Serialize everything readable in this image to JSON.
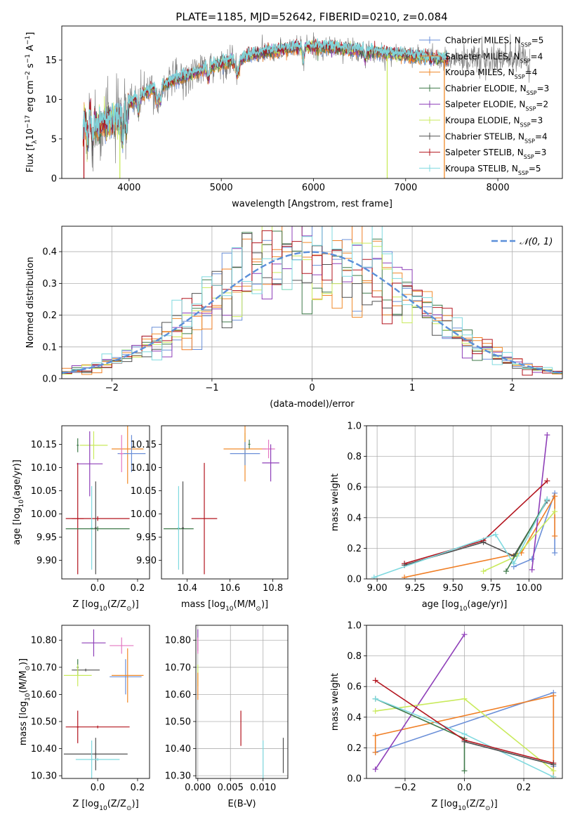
{
  "figure": {
    "title": "PLATE=1185, MJD=52642, FIBERID=0210, z=0.084"
  },
  "colors": {
    "Chabrier MILES": "#6a8fd8",
    "Salpeter MILES": "#f07f26",
    "Kroupa MILES": "#f08a2a",
    "Chabrier ELODIE": "#3f7a4a",
    "Salpeter ELODIE": "#8e3fb8",
    "Kroupa ELODIE": "#c9ea5c",
    "Chabrier STELIB": "#505050",
    "Salpeter STELIB": "#b3141e",
    "Kroupa STELIB": "#7fd9df",
    "data": "#808080",
    "extra_pink": "#e377c2"
  },
  "legend_labels": {
    "Chabrier MILES": "Chabrier MILES, N",
    "Salpeter MILES": "Salpeter MILES, N",
    "Kroupa MILES": "Kroupa MILES, N",
    "Chabrier ELODIE": "Chabrier ELODIE, N",
    "Salpeter ELODIE": "Salpeter ELODIE, N",
    "Kroupa ELODIE": "Kroupa ELODIE, N",
    "Chabrier STELIB": "Chabrier STELIB, N",
    "Salpeter STELIB": "Salpeter STELIB, N",
    "Kroupa STELIB": "Kroupa STELIB, N"
  },
  "legend_sub": "SSP",
  "legend_counts": {
    "Chabrier MILES": "=5",
    "Salpeter MILES": "=4",
    "Kroupa MILES": "=4",
    "Chabrier ELODIE": "=3",
    "Salpeter ELODIE": "=2",
    "Kroupa ELODIE": "=3",
    "Chabrier STELIB": "=4",
    "Salpeter STELIB": "=3",
    "Kroupa STELIB": "=5"
  },
  "chart_data": [
    {
      "id": "spectrum",
      "type": "line",
      "xlabel": "wavelength [Angstrom, rest frame]",
      "ylabel_parts": [
        "Flux [f",
        "λ",
        "10",
        "−17",
        " erg cm",
        "−2",
        " s",
        "−1",
        " A",
        "−1",
        "]"
      ],
      "xlim": [
        3270,
        8700
      ],
      "ylim": [
        0,
        19.3
      ],
      "xticks": [
        4000,
        5000,
        6000,
        7000,
        8000
      ],
      "yticks": [
        0,
        5,
        10,
        15
      ],
      "grid": false,
      "legend_position": "upper right",
      "continuum": {
        "x": [
          3500,
          3700,
          3900,
          4000,
          4200,
          4500,
          4800,
          5000,
          5200,
          5400,
          5600,
          5800,
          6000,
          6200,
          6400,
          6600,
          6800,
          7000,
          7200,
          7400
        ],
        "y": [
          6.0,
          7.0,
          7.5,
          9.5,
          11.0,
          12.5,
          13.8,
          14.5,
          15.2,
          15.8,
          16.2,
          16.6,
          16.7,
          16.5,
          16.3,
          16.1,
          15.9,
          15.6,
          15.4,
          15.1
        ]
      },
      "spikes": [
        {
          "x": 6800,
          "y_low": 0,
          "y_high": 15.5,
          "color": "#c9ea5c"
        },
        {
          "x": 7420,
          "y_low": 0,
          "y_high": 15.0,
          "color": "#f08a2a"
        },
        {
          "x": 3510,
          "y_low": 0,
          "y_high": 6.5,
          "color": "#b3141e"
        },
        {
          "x": 3900,
          "y_low": 0,
          "y_high": 6.0,
          "color": "#c9ea5c"
        }
      ]
    },
    {
      "id": "residuals",
      "type": "histogram",
      "xlabel": "(data-model)/error",
      "ylabel": "Normed distribution",
      "xlim": [
        -2.5,
        2.5
      ],
      "ylim": [
        0,
        0.48
      ],
      "xticks": [
        -2,
        -1,
        0,
        1,
        2
      ],
      "yticks": [
        0.0,
        0.1,
        0.2,
        0.3,
        0.4
      ],
      "grid": true,
      "legend_position": "upper right",
      "reference_curve": {
        "name": "𝒩(0, 1)",
        "mean": 0,
        "sigma": 1,
        "color": "#5b8fd9"
      }
    },
    {
      "id": "age-vs-Z",
      "type": "errorbar",
      "xlabel_parts": [
        "Z [log",
        "10",
        "(Z/Z",
        "⊙",
        ")]"
      ],
      "ylabel_parts": [
        "age  [log",
        "10",
        "(age/yr)]"
      ],
      "xlim": [
        -0.18,
        0.26
      ],
      "ylim": [
        9.86,
        10.19
      ],
      "xticks": [
        0.0,
        0.2
      ],
      "yticks": [
        9.9,
        9.95,
        10.0,
        10.05,
        10.1,
        10.15
      ],
      "grid": false,
      "points": [
        {
          "color": "#3f7a4a",
          "x": -0.1,
          "xerr": 0.005,
          "y": 10.148,
          "yerr": 0.015
        },
        {
          "color": "#c9ea5c",
          "x": -0.02,
          "xerr": 0.07,
          "y": 10.148,
          "yerr": 0.03
        },
        {
          "color": "#8e3fb8",
          "x": -0.04,
          "xerr": 0.065,
          "y": 10.108,
          "yerr": 0.07
        },
        {
          "color": "#f08a2a",
          "x": 0.15,
          "xerr": 0.08,
          "y": 10.14,
          "yerr": 0.075
        },
        {
          "color": "#6a8fd8",
          "x": 0.17,
          "xerr": 0.07,
          "y": 10.13,
          "yerr": 0.04
        },
        {
          "color": "#e377c2",
          "x": 0.12,
          "xerr": 0.01,
          "y": 10.13,
          "yerr": 0.04
        },
        {
          "color": "#b3141e",
          "x": -0.1,
          "xerr": 0.03,
          "y": 9.99,
          "yerr": 0.12
        },
        {
          "color": "#b3141e",
          "x": 0.0,
          "xerr": 0.16,
          "y": 9.99,
          "yerr": 0.005
        },
        {
          "color": "#7fd9df",
          "x": -0.03,
          "xerr": 0.005,
          "y": 9.97,
          "yerr": 0.09
        },
        {
          "color": "#3f7a4a",
          "x": 0.0,
          "xerr": 0.16,
          "y": 9.968,
          "yerr": 0.005
        },
        {
          "color": "#505050",
          "x": -0.01,
          "xerr": 0.005,
          "y": 9.97,
          "yerr": 0.1
        }
      ]
    },
    {
      "id": "age-vs-mass",
      "type": "errorbar",
      "xlabel_parts": [
        "mass [log",
        "10",
        "(M/M",
        "⊙",
        ")]"
      ],
      "xlim": [
        10.28,
        10.87
      ],
      "ylim": [
        9.86,
        10.19
      ],
      "xticks": [
        10.4,
        10.6,
        10.8
      ],
      "yticks": [
        9.9,
        9.95,
        10.0,
        10.05,
        10.1,
        10.15
      ],
      "grid": false,
      "points": [
        {
          "color": "#3f7a4a",
          "x": 10.69,
          "xerr": 0.005,
          "y": 10.15,
          "yerr": 0.01
        },
        {
          "color": "#c9ea5c",
          "x": 10.67,
          "xerr": 0.01,
          "y": 10.14,
          "yerr": 0.035
        },
        {
          "color": "#f08a2a",
          "x": 10.67,
          "xerr": 0.1,
          "y": 10.14,
          "yerr": 0.07
        },
        {
          "color": "#6a8fd8",
          "x": 10.67,
          "xerr": 0.07,
          "y": 10.13,
          "yerr": 0.025
        },
        {
          "color": "#e377c2",
          "x": 10.78,
          "xerr": 0.03,
          "y": 10.14,
          "yerr": 0.02
        },
        {
          "color": "#8e3fb8",
          "x": 10.79,
          "xerr": 0.04,
          "y": 10.11,
          "yerr": 0.04
        },
        {
          "color": "#b3141e",
          "x": 10.48,
          "xerr": 0.06,
          "y": 9.99,
          "yerr": 0.12
        },
        {
          "color": "#3f7a4a",
          "x": 10.36,
          "xerr": 0.07,
          "y": 9.968,
          "yerr": 0.003
        },
        {
          "color": "#7fd9df",
          "x": 10.36,
          "xerr": 0.005,
          "y": 9.97,
          "yerr": 0.09
        },
        {
          "color": "#505050",
          "x": 10.38,
          "xerr": 0.005,
          "y": 9.97,
          "yerr": 0.1
        }
      ]
    },
    {
      "id": "weights-vs-age",
      "type": "line",
      "xlabel_parts": [
        "age  [log",
        "10",
        "(age/yr)]"
      ],
      "ylabel": "mass weight",
      "xlim": [
        8.93,
        10.22
      ],
      "ylim": [
        0,
        1.0
      ],
      "xticks": [
        9.0,
        9.25,
        9.5,
        9.75,
        10.0
      ],
      "yticks": [
        0.0,
        0.2,
        0.4,
        0.6,
        0.8,
        1.0
      ],
      "grid": true,
      "series": [
        {
          "color": "#6a8fd8",
          "x": [
            9.9,
            10.02,
            10.17,
            10.17
          ],
          "y": [
            0.08,
            0.13,
            0.56,
            0.17
          ]
        },
        {
          "color": "#f07f26",
          "x": [
            9.18,
            9.95,
            10.17,
            10.17
          ],
          "y": [
            0.01,
            0.17,
            0.54,
            0.28
          ]
        },
        {
          "color": "#8e3fb8",
          "x": [
            10.02,
            10.12
          ],
          "y": [
            0.06,
            0.94
          ]
        },
        {
          "color": "#c9ea5c",
          "x": [
            9.7,
            9.92,
            10.17
          ],
          "y": [
            0.05,
            0.15,
            0.44
          ]
        },
        {
          "color": "#b3141e",
          "x": [
            9.18,
            9.7,
            10.12
          ],
          "y": [
            0.1,
            0.25,
            0.64
          ]
        },
        {
          "color": "#505050",
          "x": [
            9.18,
            9.7,
            9.9,
            10.12
          ],
          "y": [
            0.09,
            0.24,
            0.15,
            0.51
          ]
        },
        {
          "color": "#3f7a4a",
          "x": [
            9.85,
            10.12
          ],
          "y": [
            0.05,
            0.52
          ]
        },
        {
          "color": "#7fd9df",
          "x": [
            8.98,
            9.78,
            9.9,
            10.12
          ],
          "y": [
            0.01,
            0.29,
            0.1,
            0.52
          ]
        }
      ]
    },
    {
      "id": "mass-vs-Z",
      "type": "errorbar",
      "xlabel_parts": [
        "Z [log",
        "10",
        "(Z/Z",
        "⊙",
        ")]"
      ],
      "ylabel_parts": [
        "mass [log",
        "10",
        "(M/M",
        "⊙",
        ")]"
      ],
      "xlim": [
        -0.18,
        0.26
      ],
      "ylim": [
        10.29,
        10.855
      ],
      "xticks": [
        0.0,
        0.2
      ],
      "yticks": [
        10.3,
        10.4,
        10.5,
        10.6,
        10.7,
        10.8
      ],
      "grid": false,
      "points": [
        {
          "color": "#8e3fb8",
          "x": -0.02,
          "xerr": 0.06,
          "y": 10.79,
          "yerr": 0.05
        },
        {
          "color": "#e377c2",
          "x": 0.12,
          "xerr": 0.06,
          "y": 10.78,
          "yerr": 0.03
        },
        {
          "color": "#3f7a4a",
          "x": -0.1,
          "xerr": 0.005,
          "y": 10.7,
          "yerr": 0.03
        },
        {
          "color": "#505050",
          "x": -0.06,
          "xerr": 0.07,
          "y": 10.69,
          "yerr": 0.005
        },
        {
          "color": "#c9ea5c",
          "x": -0.1,
          "xerr": 0.07,
          "y": 10.67,
          "yerr": 0.04
        },
        {
          "color": "#6a8fd8",
          "x": 0.14,
          "xerr": 0.08,
          "y": 10.665,
          "yerr": 0.065
        },
        {
          "color": "#f08a2a",
          "x": 0.15,
          "xerr": 0.08,
          "y": 10.67,
          "yerr": 0.1
        },
        {
          "color": "#b3141e",
          "x": 0.0,
          "xerr": 0.16,
          "y": 10.48,
          "yerr": 0.005
        },
        {
          "color": "#b3141e",
          "x": -0.1,
          "xerr": 0.005,
          "y": 10.48,
          "yerr": 0.06
        },
        {
          "color": "#505050",
          "x": -0.01,
          "xerr": 0.16,
          "y": 10.38,
          "yerr": 0.005
        },
        {
          "color": "#505050",
          "x": -0.01,
          "xerr": 0.005,
          "y": 10.38,
          "yerr": 0.06
        },
        {
          "color": "#7fd9df",
          "x": -0.03,
          "xerr": 0.005,
          "y": 10.36,
          "yerr": 0.07
        },
        {
          "color": "#7fd9df",
          "x": 0.0,
          "xerr": 0.11,
          "y": 10.36,
          "yerr": 0.005
        }
      ]
    },
    {
      "id": "mass-vs-EBV",
      "type": "errorbar",
      "xlabel": "E(B-V)",
      "xlim": [
        -0.0003,
        0.0138
      ],
      "ylim": [
        10.29,
        10.855
      ],
      "xticks": [
        0.0,
        0.005,
        0.01
      ],
      "yticks": [
        10.3,
        10.4,
        10.5,
        10.6,
        10.7,
        10.8
      ],
      "grid": true,
      "points": [
        {
          "color": "#8e3fb8",
          "x": 0.0,
          "xerr": 2e-05,
          "y": 10.8,
          "yerr": 0.04
        },
        {
          "color": "#e377c2",
          "x": 0.0,
          "xerr": 2e-05,
          "y": 10.78,
          "yerr": 0.03
        },
        {
          "color": "#c9ea5c",
          "x": 0.0,
          "xerr": 2e-05,
          "y": 10.67,
          "yerr": 0.04
        },
        {
          "color": "#f08a2a",
          "x": 0.0,
          "xerr": 2e-05,
          "y": 10.63,
          "yerr": 0.05
        },
        {
          "color": "#b3141e",
          "x": 0.0066,
          "xerr": 2e-05,
          "y": 10.475,
          "yerr": 0.065
        },
        {
          "color": "#7fd9df",
          "x": 0.01,
          "xerr": 2e-05,
          "y": 10.36,
          "yerr": 0.07
        },
        {
          "color": "#505050",
          "x": 0.0131,
          "xerr": 2e-05,
          "y": 10.375,
          "yerr": 0.065
        }
      ]
    },
    {
      "id": "weights-vs-Z",
      "type": "line",
      "xlabel_parts": [
        "Z [log",
        "10",
        "(Z/Z",
        "⊙",
        ")]"
      ],
      "ylabel": "mass weight",
      "xlim": [
        -0.33,
        0.33
      ],
      "ylim": [
        0,
        1.0
      ],
      "xticks": [
        -0.2,
        0.0,
        0.2
      ],
      "yticks": [
        0.0,
        0.2,
        0.4,
        0.6,
        0.8,
        1.0
      ],
      "grid": true,
      "series": [
        {
          "color": "#6a8fd8",
          "x": [
            -0.3,
            0.3,
            0.3
          ],
          "y": [
            0.17,
            0.56,
            0.08
          ]
        },
        {
          "color": "#f07f26",
          "x": [
            -0.3,
            -0.3,
            0.3,
            0.3
          ],
          "y": [
            0.17,
            0.28,
            0.54,
            0.01
          ]
        },
        {
          "color": "#8e3fb8",
          "x": [
            -0.3,
            0.0
          ],
          "y": [
            0.06,
            0.94
          ]
        },
        {
          "color": "#c9ea5c",
          "x": [
            -0.3,
            0.0,
            0.3
          ],
          "y": [
            0.44,
            0.52,
            0.05
          ]
        },
        {
          "color": "#3f7a4a",
          "x": [
            -0.3,
            0.0,
            0.0
          ],
          "y": [
            0.52,
            0.26,
            0.05
          ]
        },
        {
          "color": "#7fd9df",
          "x": [
            -0.3,
            0.0,
            0.3
          ],
          "y": [
            0.52,
            0.29,
            0.01
          ]
        },
        {
          "color": "#b3141e",
          "x": [
            -0.3,
            0.0,
            0.3
          ],
          "y": [
            0.64,
            0.25,
            0.1
          ]
        },
        {
          "color": "#505050",
          "x": [
            0.0,
            0.3
          ],
          "y": [
            0.24,
            0.09
          ]
        }
      ]
    }
  ]
}
